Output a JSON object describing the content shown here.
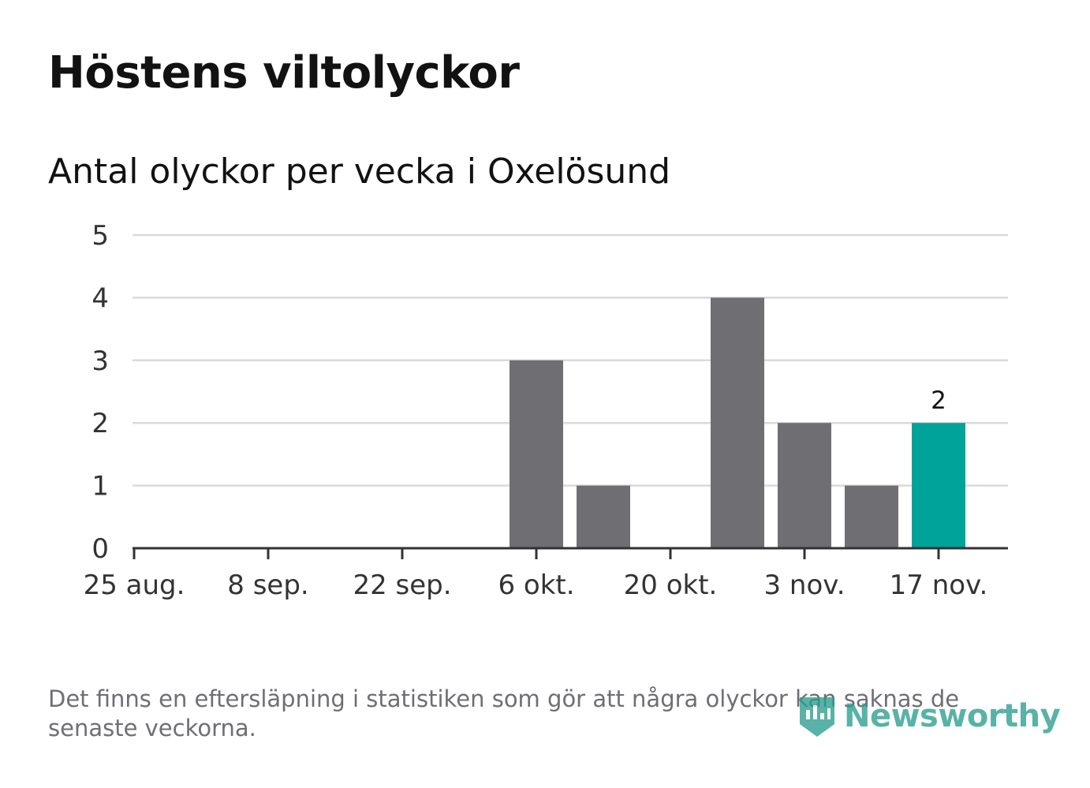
{
  "header": {
    "title": "Höstens viltolyckor",
    "subtitle": "Antal olyckor per vecka i Oxelösund"
  },
  "footer": {
    "note": "Det finns en eftersläpning i statistiken som gör att några olyckor kan saknas de senaste veckorna.",
    "logo_text": "Newsworthy",
    "logo_icon": "newsworthy-logo-icon"
  },
  "colors": {
    "bar": "#6f6e73",
    "highlight": "#00a39a",
    "grid": "#d9d9d9",
    "axis": "#333333"
  },
  "chart_data": {
    "type": "bar",
    "x": [
      "2019-08-25",
      "2019-09-01",
      "2019-09-08",
      "2019-09-15",
      "2019-09-22",
      "2019-09-29",
      "2019-10-06",
      "2019-10-13",
      "2019-10-20",
      "2019-10-27",
      "2019-11-03",
      "2019-11-10",
      "2019-11-17"
    ],
    "values": [
      0,
      0,
      0,
      0,
      0,
      0,
      3,
      1,
      0,
      4,
      2,
      1,
      2
    ],
    "highlight_index": 12,
    "data_labels": [
      {
        "index": 12,
        "text": "2"
      }
    ],
    "xticks": [
      "25 aug.",
      "8 sep.",
      "22 sep.",
      "6 okt.",
      "20 okt.",
      "3 nov.",
      "17 nov."
    ],
    "yticks": [
      "0",
      "1",
      "2",
      "3",
      "4",
      "5"
    ],
    "ylim": [
      0,
      5
    ],
    "grid": true,
    "legend": "none"
  }
}
